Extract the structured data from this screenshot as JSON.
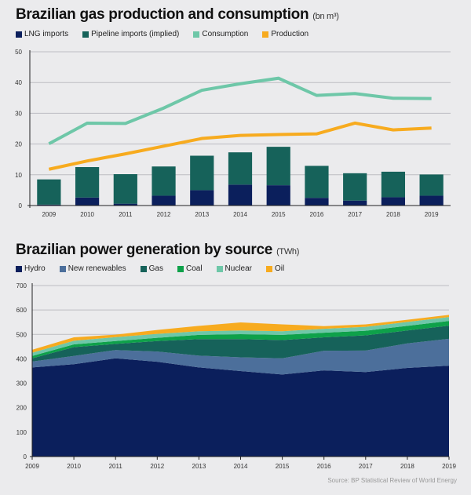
{
  "chart_data": [
    {
      "type": "bar",
      "title": "Brazilian gas production and consumption",
      "unit": "(bn m³)",
      "xlabel": "",
      "ylabel": "",
      "ylim": [
        0,
        50
      ],
      "yticks": [
        "0",
        "10",
        "20",
        "30",
        "40",
        "50"
      ],
      "grid": true,
      "legend_position": "top-left",
      "categories": [
        "2009",
        "2010",
        "2011",
        "2012",
        "2013",
        "2014",
        "2015",
        "2016",
        "2017",
        "2018",
        "2019"
      ],
      "series": [
        {
          "name": "LNG imports",
          "kind": "stacked-bar",
          "color": "#0b1f5c",
          "values": [
            0.3,
            2.6,
            0.6,
            3.2,
            5.0,
            6.8,
            6.6,
            2.5,
            1.6,
            2.7,
            3.2
          ]
        },
        {
          "name": "Pipeline imports (implied)",
          "kind": "stacked-bar",
          "color": "#16625a",
          "values": [
            8.2,
            9.9,
            9.6,
            9.5,
            11.2,
            10.5,
            12.5,
            10.4,
            8.9,
            8.3,
            6.9
          ]
        },
        {
          "name": "Consumption",
          "kind": "line",
          "color": "#6ec7a8",
          "values": [
            20.1,
            26.8,
            26.7,
            31.7,
            37.5,
            39.6,
            41.4,
            35.8,
            36.4,
            34.9,
            34.8
          ]
        },
        {
          "name": "Production",
          "kind": "line",
          "color": "#f7ab1f",
          "values": [
            11.8,
            14.5,
            16.8,
            19.3,
            21.8,
            22.8,
            23.1,
            23.3,
            26.8,
            24.6,
            25.2
          ]
        }
      ]
    },
    {
      "type": "area",
      "title": "Brazilian power generation by source",
      "unit": "(TWh)",
      "xlabel": "",
      "ylabel": "",
      "ylim": [
        0,
        700
      ],
      "yticks": [
        "0",
        "100",
        "200",
        "300",
        "400",
        "500",
        "600",
        "700"
      ],
      "grid": true,
      "legend_position": "top-left",
      "stacked": true,
      "x": [
        "2009",
        "2010",
        "2011",
        "2012",
        "2013",
        "2014",
        "2015",
        "2016",
        "2017",
        "2018",
        "2019"
      ],
      "series": [
        {
          "name": "Hydro",
          "color": "#0b1f5c",
          "values": [
            365,
            378,
            402,
            388,
            365,
            350,
            336,
            353,
            346,
            363,
            372
          ]
        },
        {
          "name": "New renewables",
          "color": "#4c6f9b",
          "values": [
            24,
            34,
            34,
            42,
            48,
            56,
            66,
            80,
            88,
            100,
            110
          ]
        },
        {
          "name": "Gas",
          "color": "#16625a",
          "values": [
            13,
            36,
            25,
            43,
            68,
            75,
            75,
            55,
            62,
            53,
            54
          ]
        },
        {
          "name": "Coal",
          "color": "#0ea14a",
          "values": [
            10,
            11,
            12,
            13,
            17,
            20,
            21,
            19,
            19,
            19,
            19
          ]
        },
        {
          "name": "Nuclear",
          "color": "#6ec7a8",
          "values": [
            13,
            15,
            16,
            16,
            15,
            15,
            15,
            16,
            16,
            16,
            16
          ]
        },
        {
          "name": "Oil",
          "color": "#f7ab1f",
          "values": [
            12,
            14,
            10,
            16,
            22,
            33,
            28,
            11,
            10,
            9,
            9
          ]
        }
      ]
    }
  ],
  "source": "Source: BP Statistical Review of World Energy"
}
